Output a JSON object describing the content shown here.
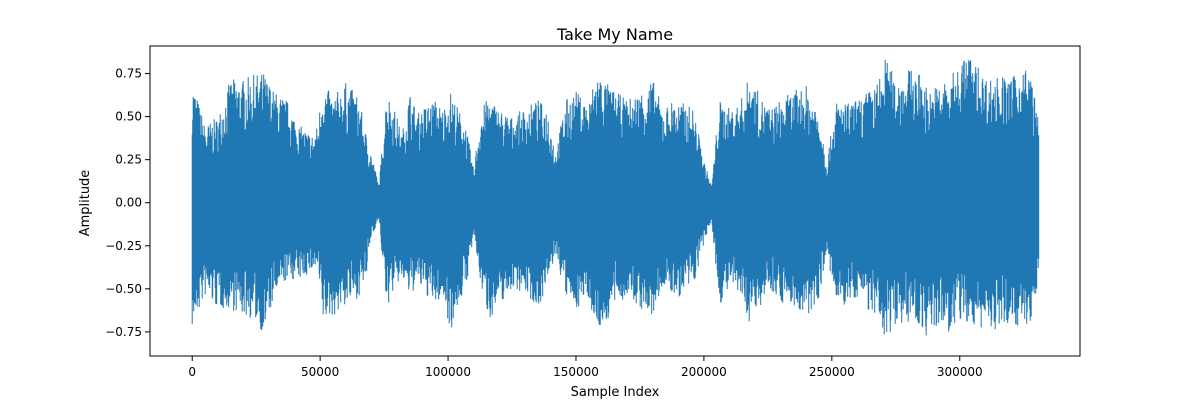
{
  "chart_data": {
    "type": "line",
    "title": "Take My Name",
    "xlabel": "Sample Index",
    "ylabel": "Amplitude",
    "xlim": [
      -16500,
      347000
    ],
    "ylim": [
      -0.89,
      0.91
    ],
    "x_ticks": [
      0,
      50000,
      100000,
      150000,
      200000,
      250000,
      300000
    ],
    "x_tick_labels": [
      "0",
      "50000",
      "100000",
      "150000",
      "200000",
      "250000",
      "300000"
    ],
    "y_ticks": [
      -0.75,
      -0.5,
      -0.25,
      0.0,
      0.25,
      0.5,
      0.75
    ],
    "y_tick_labels": [
      "−0.75",
      "−0.50",
      "−0.25",
      "0.00",
      "0.25",
      "0.50",
      "0.75"
    ],
    "grid": false,
    "series": [
      {
        "color": "#1f77b4",
        "x_start": 0,
        "x_end": 331000,
        "envelope_points": [
          [
            0,
            0.72,
            -0.73
          ],
          [
            5000,
            0.45,
            -0.55
          ],
          [
            10000,
            0.5,
            -0.62
          ],
          [
            15000,
            0.72,
            -0.62
          ],
          [
            20000,
            0.72,
            -0.66
          ],
          [
            25000,
            0.75,
            -0.69
          ],
          [
            28000,
            0.76,
            -0.77
          ],
          [
            32000,
            0.65,
            -0.56
          ],
          [
            37000,
            0.6,
            -0.45
          ],
          [
            42000,
            0.45,
            -0.45
          ],
          [
            47000,
            0.4,
            -0.4
          ],
          [
            49000,
            0.45,
            -0.4
          ],
          [
            51000,
            0.7,
            -0.7
          ],
          [
            55000,
            0.62,
            -0.66
          ],
          [
            60000,
            0.7,
            -0.6
          ],
          [
            65000,
            0.62,
            -0.55
          ],
          [
            68000,
            0.4,
            -0.45
          ],
          [
            70000,
            0.3,
            -0.2
          ],
          [
            73000,
            0.1,
            -0.1
          ],
          [
            76000,
            0.65,
            -0.62
          ],
          [
            79000,
            0.55,
            -0.5
          ],
          [
            82000,
            0.4,
            -0.45
          ],
          [
            85000,
            0.65,
            -0.55
          ],
          [
            88000,
            0.52,
            -0.48
          ],
          [
            92000,
            0.58,
            -0.55
          ],
          [
            95000,
            0.6,
            -0.6
          ],
          [
            98000,
            0.55,
            -0.55
          ],
          [
            101000,
            0.65,
            -0.75
          ],
          [
            104000,
            0.55,
            -0.6
          ],
          [
            107000,
            0.45,
            -0.5
          ],
          [
            110000,
            0.2,
            -0.2
          ],
          [
            113000,
            0.55,
            -0.5
          ],
          [
            116000,
            0.62,
            -0.68
          ],
          [
            120000,
            0.55,
            -0.6
          ],
          [
            125000,
            0.5,
            -0.5
          ],
          [
            130000,
            0.55,
            -0.52
          ],
          [
            135000,
            0.6,
            -0.62
          ],
          [
            139000,
            0.55,
            -0.48
          ],
          [
            142000,
            0.3,
            -0.3
          ],
          [
            146000,
            0.6,
            -0.55
          ],
          [
            150000,
            0.65,
            -0.62
          ],
          [
            155000,
            0.58,
            -0.55
          ],
          [
            158000,
            0.78,
            -0.75
          ],
          [
            162000,
            0.7,
            -0.7
          ],
          [
            165000,
            0.65,
            -0.6
          ],
          [
            170000,
            0.6,
            -0.55
          ],
          [
            175000,
            0.65,
            -0.62
          ],
          [
            180000,
            0.72,
            -0.68
          ],
          [
            184000,
            0.55,
            -0.48
          ],
          [
            188000,
            0.6,
            -0.55
          ],
          [
            192000,
            0.58,
            -0.55
          ],
          [
            196000,
            0.55,
            -0.48
          ],
          [
            200000,
            0.25,
            -0.25
          ],
          [
            203000,
            0.1,
            -0.1
          ],
          [
            206000,
            0.6,
            -0.6
          ],
          [
            210000,
            0.55,
            -0.5
          ],
          [
            214000,
            0.58,
            -0.55
          ],
          [
            218000,
            0.75,
            -0.7
          ],
          [
            222000,
            0.62,
            -0.6
          ],
          [
            226000,
            0.55,
            -0.5
          ],
          [
            230000,
            0.6,
            -0.58
          ],
          [
            235000,
            0.65,
            -0.6
          ],
          [
            240000,
            0.68,
            -0.7
          ],
          [
            245000,
            0.55,
            -0.55
          ],
          [
            248000,
            0.25,
            -0.3
          ],
          [
            252000,
            0.6,
            -0.62
          ],
          [
            256000,
            0.58,
            -0.6
          ],
          [
            260000,
            0.6,
            -0.55
          ],
          [
            264000,
            0.65,
            -0.62
          ],
          [
            268000,
            0.7,
            -0.72
          ],
          [
            271000,
            0.85,
            -0.8
          ],
          [
            275000,
            0.72,
            -0.7
          ],
          [
            280000,
            0.78,
            -0.7
          ],
          [
            285000,
            0.75,
            -0.72
          ],
          [
            288000,
            0.65,
            -0.81
          ],
          [
            292000,
            0.7,
            -0.72
          ],
          [
            296000,
            0.72,
            -0.76
          ],
          [
            300000,
            0.82,
            -0.72
          ],
          [
            303000,
            0.88,
            -0.7
          ],
          [
            307000,
            0.8,
            -0.76
          ],
          [
            311000,
            0.72,
            -0.7
          ],
          [
            315000,
            0.75,
            -0.78
          ],
          [
            320000,
            0.72,
            -0.68
          ],
          [
            325000,
            0.8,
            -0.75
          ],
          [
            328000,
            0.75,
            -0.7
          ],
          [
            331000,
            0.45,
            -0.45
          ]
        ]
      }
    ]
  }
}
